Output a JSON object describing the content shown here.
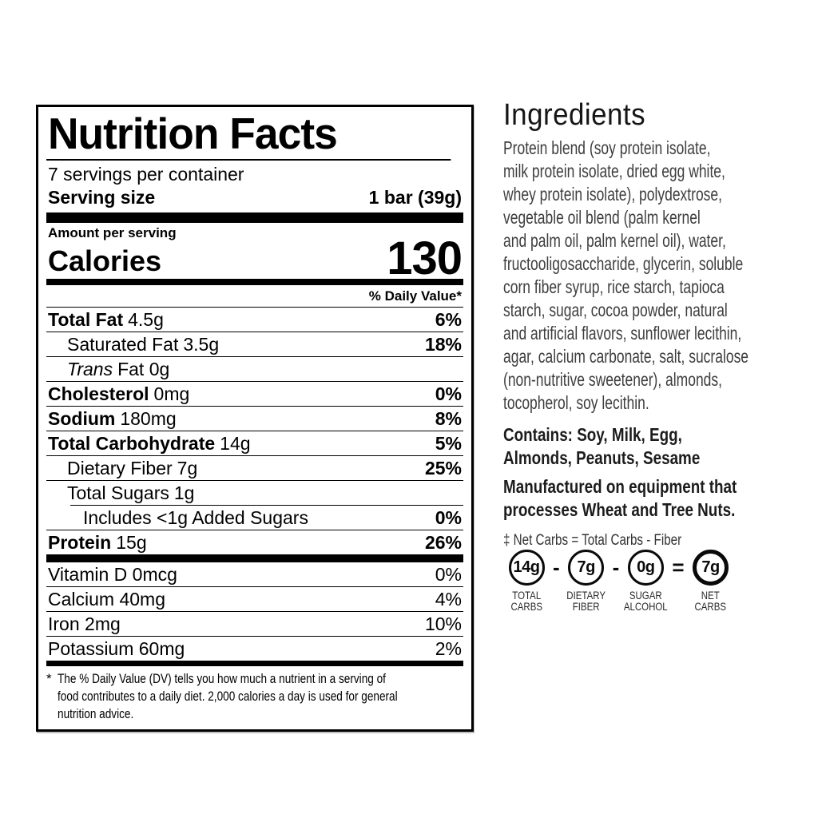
{
  "palette": {
    "ink": "#000000",
    "body_text": "#3e3e3e"
  },
  "label": {
    "title": "Nutrition Facts",
    "servings_per_container": "7 servings per container",
    "serving_size_label": "Serving size",
    "serving_size_value": "1 bar (39g)",
    "amount_per_serving": "Amount per serving",
    "calories_label": "Calories",
    "calories_value": "130",
    "daily_value_header": "% Daily Value*",
    "rows": [
      {
        "name": "Total Fat",
        "value": "4.5g",
        "pct": "6%"
      },
      {
        "name": "Saturated Fat",
        "value": "3.5g",
        "pct": "18%"
      },
      {
        "name": "Trans",
        "value": "Fat 0g",
        "pct": ""
      },
      {
        "name": "Cholesterol",
        "value": "0mg",
        "pct": "0%"
      },
      {
        "name": "Sodium",
        "value": "180mg",
        "pct": "8%"
      },
      {
        "name": "Total Carbohydrate",
        "value": "14g",
        "pct": "5%"
      },
      {
        "name": "Dietary Fiber",
        "value": "7g",
        "pct": "25%"
      },
      {
        "name": "Total Sugars",
        "value": "1g",
        "pct": ""
      },
      {
        "name": "Includes <1g Added Sugars",
        "value": "",
        "pct": "0%"
      },
      {
        "name": "Protein",
        "value": "15g",
        "pct": "26%"
      }
    ],
    "vitamins": [
      {
        "name": "Vitamin D 0mcg",
        "pct": "0%"
      },
      {
        "name": "Calcium 40mg",
        "pct": "4%"
      },
      {
        "name": "Iron 2mg",
        "pct": "10%"
      },
      {
        "name": "Potassium 60mg",
        "pct": "2%"
      }
    ],
    "footnote_marker": "*",
    "footnote_lines": [
      "The % Daily Value (DV) tells you how much a nutrient in a serving of",
      "food contributes to a daily diet. 2,000 calories a day is used for general",
      "nutrition advice."
    ]
  },
  "ingredients": {
    "heading": "Ingredients",
    "body_lines": [
      "Protein blend (soy protein isolate,",
      "milk protein isolate, dried egg white,",
      "whey protein isolate), polydextrose,",
      "vegetable oil blend (palm kernel",
      "and palm oil, palm kernel oil), water,",
      "fructooligosaccharide, glycerin, soluble",
      "corn fiber syrup, rice starch, tapioca",
      "starch, sugar, cocoa powder, natural",
      "and artificial flavors, sunflower lecithin,",
      "agar, calcium carbonate, salt, sucralose",
      "(non-nutritive sweetener), almonds,",
      "tocopherol, soy lecithin."
    ],
    "contains_lines": [
      "Contains: Soy, Milk, Egg,",
      "Almonds, Peanuts, Sesame"
    ],
    "manufactured_lines": [
      "Manufactured on equipment that",
      "processes Wheat and Tree Nuts."
    ],
    "net_carbs_note": "‡ Net Carbs = Total Carbs - Fiber",
    "equation": {
      "items": [
        {
          "value": "14g",
          "label_lines": [
            "TOTAL",
            "CARBS"
          ]
        },
        {
          "value": "7g",
          "label_lines": [
            "DIETARY",
            "FIBER"
          ]
        },
        {
          "value": "0g",
          "label_lines": [
            "SUGAR",
            "ALCOHOL"
          ]
        },
        {
          "value": "7g",
          "label_lines": [
            "NET",
            "CARBS"
          ]
        }
      ],
      "operators": [
        "-",
        "-",
        "="
      ]
    }
  }
}
